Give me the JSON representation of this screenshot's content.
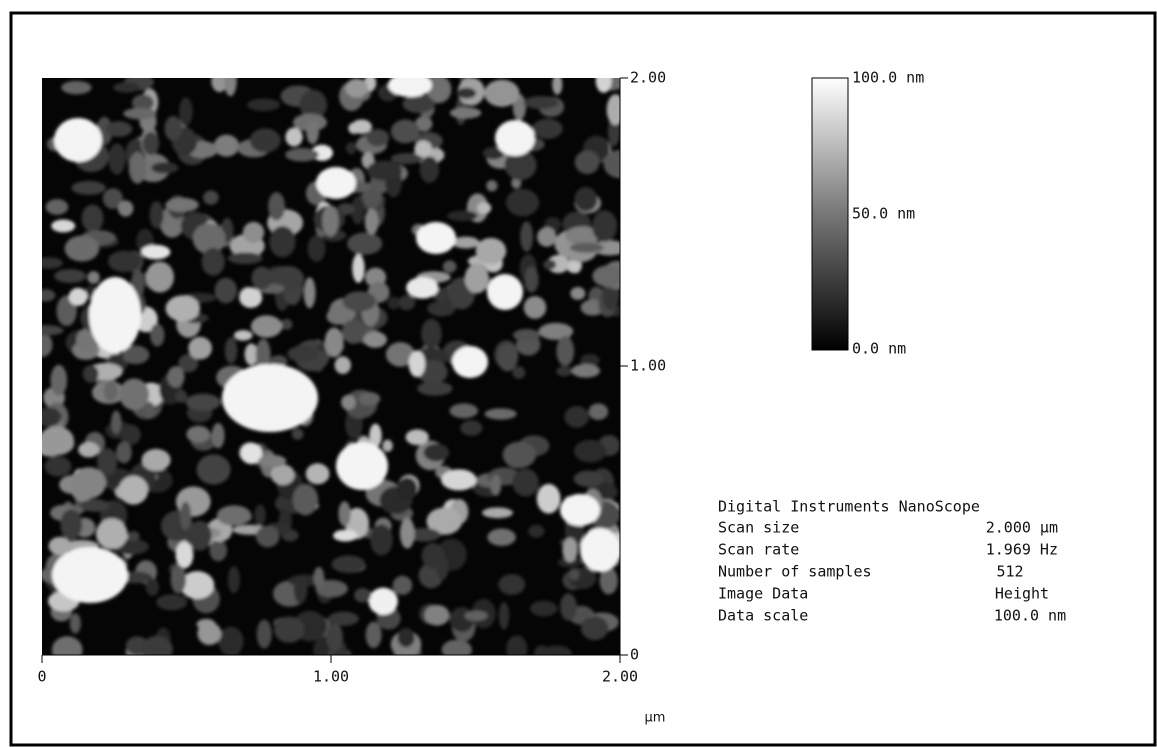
{
  "image": {
    "y_ticks": [
      "2.00",
      "1.00",
      "0"
    ],
    "x_ticks": [
      "0",
      "1.00",
      "2.00"
    ],
    "x_unit": "µm"
  },
  "color_scale": {
    "labels": [
      "100.0 nm",
      "50.0 nm",
      "0.0 nm"
    ]
  },
  "info": {
    "title": "Digital Instruments NanoScope",
    "rows": [
      [
        "Scan size",
        "2.000 µm"
      ],
      [
        "Scan rate",
        "1.969 Hz"
      ],
      [
        "Number of samples",
        "512"
      ],
      [
        "Image Data",
        "Height"
      ],
      [
        "Data scale",
        "100.0 nm"
      ]
    ]
  }
}
